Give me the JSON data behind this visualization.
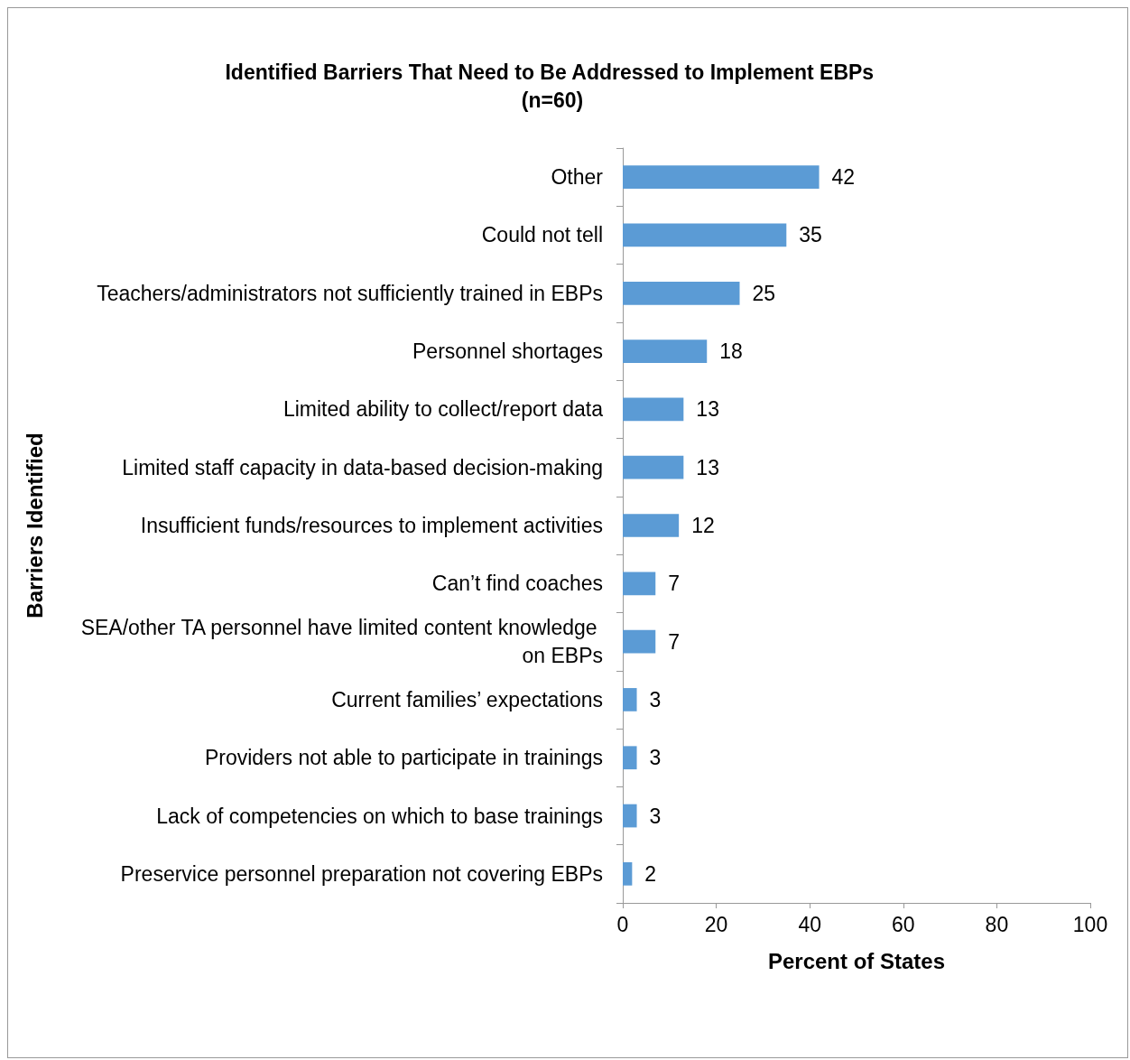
{
  "chart_data": {
    "type": "bar",
    "orientation": "horizontal",
    "title": "Identified Barriers That Need to Be Addressed to Implement EBPs (n=60)",
    "xlabel": "Percent of States",
    "ylabel": "Barriers Identified",
    "categories": [
      "Other",
      "Could not tell",
      "Teachers/administrators not sufficiently trained in EBPs",
      "Personnel shortages",
      "Limited ability to collect/report data",
      "Limited staff capacity in data-based decision-making",
      "Insufficient funds/resources to implement activities",
      "Can’t find coaches",
      "SEA/other TA personnel have limited content knowledge on EBPs",
      "Current families’ expectations",
      "Providers not able to participate in trainings",
      "Lack of competencies on which to base trainings",
      "Preservice personnel preparation not covering EBPs"
    ],
    "values": [
      42,
      35,
      25,
      18,
      13,
      13,
      12,
      7,
      7,
      3,
      3,
      3,
      2
    ],
    "color": "#5b9bd5",
    "data_labels": true,
    "grid": false,
    "xlim": [
      0,
      100
    ],
    "xticks": [
      0,
      20,
      40,
      60,
      80,
      100
    ]
  }
}
